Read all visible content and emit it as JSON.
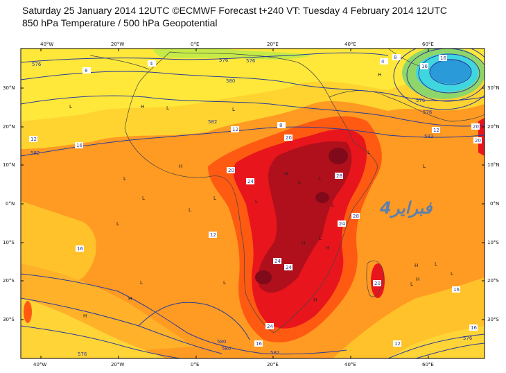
{
  "header": {
    "line1": "Saturday 25 January 2014 12UTC ©ECMWF Forecast t+240 VT: Tuesday 4 February 2014 12UTC",
    "line2": "850 hPa Temperature / 500 hPa Geopotential"
  },
  "axes": {
    "lon_top": [
      "40°W",
      "20°W",
      "0°E",
      "20°E",
      "40°E",
      "60°E"
    ],
    "lon_bottom": [
      "40°W",
      "20°W",
      "0°E",
      "20°E",
      "40°E",
      "60°E"
    ],
    "lat_left": [
      "30°N",
      "20°N",
      "10°N",
      "0°N",
      "10°S",
      "20°S",
      "30°S"
    ],
    "lat_right": [
      "30°N",
      "20°N",
      "10°N",
      "0°N",
      "10°S",
      "20°S",
      "30°S"
    ]
  },
  "contour_labels": {
    "geopotential": [
      "576",
      "576",
      "580",
      "576",
      "582",
      "582",
      "576",
      "576",
      "582",
      "580",
      "576",
      "582",
      "576",
      "580"
    ],
    "temperature": [
      "4",
      "8",
      "12",
      "12",
      "16",
      "12",
      "16",
      "8",
      "20",
      "24",
      "28",
      "20",
      "24",
      "24",
      "24",
      "28",
      "16",
      "20",
      "16",
      "12",
      "16",
      "16",
      "12",
      "4",
      "8",
      "16",
      "20",
      "24",
      "20"
    ]
  },
  "pressure_marks": {
    "H": [
      "H",
      "H",
      "H",
      "H",
      "H",
      "H",
      "H",
      "H",
      "H",
      "H",
      "H"
    ],
    "L": [
      "L",
      "L",
      "L",
      "L",
      "L",
      "L",
      "L",
      "L",
      "L",
      "L",
      "L",
      "L",
      "L",
      "L",
      "L",
      "L",
      "L",
      "L",
      "L",
      "L"
    ]
  },
  "watermark": "4فبراير",
  "colors": {
    "cold_blue": "#2a9bd8",
    "cyan": "#3fd6e0",
    "green": "#9fe06a",
    "yellow_green": "#d4ec3a",
    "yellow": "#ffe23a",
    "orange_light": "#ffb229",
    "orange": "#ff8a1f",
    "red_orange": "#ff5a12",
    "red": "#e8161c",
    "dark_red": "#b0101c",
    "maroon": "#800a1a",
    "contour_blue": "#2b3b9a"
  }
}
